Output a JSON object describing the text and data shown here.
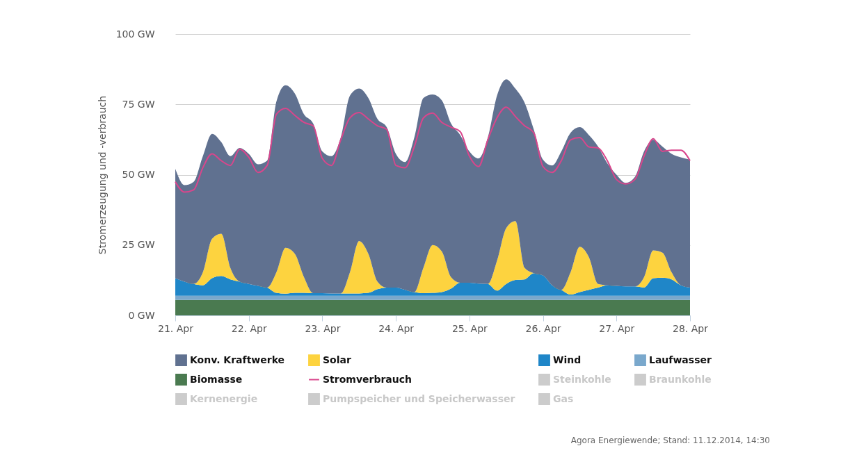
{
  "chart_data": {
    "type": "area",
    "stacked": true,
    "ylabel": "Stromerzeugung und -verbrauch",
    "annotations": [
      "Agora Energiewende; Stand: 11.12.2014, 14:30"
    ],
    "x": [
      "2014-04-21T00:00",
      "2014-04-21T03:00",
      "2014-04-21T06:00",
      "2014-04-21T09:00",
      "2014-04-21T12:00",
      "2014-04-21T15:00",
      "2014-04-21T18:00",
      "2014-04-21T21:00",
      "2014-04-22T00:00",
      "2014-04-22T03:00",
      "2014-04-22T06:00",
      "2014-04-22T09:00",
      "2014-04-22T12:00",
      "2014-04-22T15:00",
      "2014-04-22T18:00",
      "2014-04-22T21:00",
      "2014-04-23T00:00",
      "2014-04-23T03:00",
      "2014-04-23T06:00",
      "2014-04-23T09:00",
      "2014-04-23T12:00",
      "2014-04-23T15:00",
      "2014-04-23T18:00",
      "2014-04-23T21:00",
      "2014-04-24T00:00",
      "2014-04-24T03:00",
      "2014-04-24T06:00",
      "2014-04-24T09:00",
      "2014-04-24T12:00",
      "2014-04-24T15:00",
      "2014-04-24T18:00",
      "2014-04-24T21:00",
      "2014-04-25T00:00",
      "2014-04-25T03:00",
      "2014-04-25T06:00",
      "2014-04-25T09:00",
      "2014-04-25T12:00",
      "2014-04-25T15:00",
      "2014-04-25T18:00",
      "2014-04-25T21:00",
      "2014-04-26T00:00",
      "2014-04-26T03:00",
      "2014-04-26T06:00",
      "2014-04-26T09:00",
      "2014-04-26T12:00",
      "2014-04-26T15:00",
      "2014-04-26T18:00",
      "2014-04-26T21:00",
      "2014-04-27T00:00",
      "2014-04-27T03:00",
      "2014-04-27T06:00",
      "2014-04-27T09:00",
      "2014-04-27T12:00",
      "2014-04-27T15:00",
      "2014-04-27T18:00",
      "2014-04-27T21:00",
      "2014-04-28T00:00"
    ],
    "xlim": [
      "2014-04-21T00:00",
      "2014-04-28T00:00"
    ],
    "xticks": [
      {
        "value": "2014-04-21",
        "label": "21. Apr"
      },
      {
        "value": "2014-04-22",
        "label": "22. Apr"
      },
      {
        "value": "2014-04-23",
        "label": "23. Apr"
      },
      {
        "value": "2014-04-24",
        "label": "24. Apr"
      },
      {
        "value": "2014-04-25",
        "label": "25. Apr"
      },
      {
        "value": "2014-04-26",
        "label": "26. Apr"
      },
      {
        "value": "2014-04-27",
        "label": "27. Apr"
      },
      {
        "value": "2014-04-28",
        "label": "28. Apr"
      }
    ],
    "ylim": [
      0,
      100
    ],
    "yticks": [
      {
        "value": 0,
        "label": "0 GW"
      },
      {
        "value": 25,
        "label": "25 GW"
      },
      {
        "value": 50,
        "label": "50 GW"
      },
      {
        "value": 75,
        "label": "75 GW"
      },
      {
        "value": 100,
        "label": "100 GW"
      }
    ],
    "grid": "y",
    "legend": "bottom",
    "series": [
      {
        "name": "Biomasse",
        "color": "#4a7a50",
        "values": [
          5.5,
          5.5,
          5.5,
          5.5,
          5.5,
          5.5,
          5.5,
          5.5,
          5.5,
          5.5,
          5.5,
          5.5,
          5.5,
          5.5,
          5.5,
          5.5,
          5.5,
          5.5,
          5.5,
          5.5,
          5.5,
          5.5,
          5.5,
          5.5,
          5.5,
          5.5,
          5.5,
          5.5,
          5.5,
          5.5,
          5.5,
          5.5,
          5.5,
          5.5,
          5.5,
          5.5,
          5.5,
          5.5,
          5.5,
          5.5,
          5.5,
          5.5,
          5.5,
          5.5,
          5.5,
          5.5,
          5.5,
          5.5,
          5.5,
          5.5,
          5.5,
          5.5,
          5.5,
          5.5,
          5.5,
          5.5,
          5.5
        ]
      },
      {
        "name": "Laufwasser",
        "color": "#7aa8cc",
        "values": [
          1.5,
          1.5,
          1.5,
          1.5,
          1.5,
          1.5,
          1.5,
          1.5,
          1.5,
          1.5,
          1.5,
          1.5,
          1.5,
          1.5,
          1.5,
          1.5,
          1.5,
          1.5,
          1.5,
          1.5,
          1.5,
          1.5,
          1.5,
          1.5,
          1.5,
          1.5,
          1.5,
          1.5,
          1.5,
          1.5,
          1.5,
          1.5,
          1.5,
          1.5,
          1.5,
          1.5,
          1.5,
          1.5,
          1.5,
          1.5,
          1.5,
          1.5,
          1.5,
          1.5,
          1.5,
          1.5,
          1.5,
          1.5,
          1.5,
          1.5,
          1.5,
          1.5,
          1.5,
          1.5,
          1.5,
          1.5,
          1.5
        ]
      },
      {
        "name": "Wind",
        "color": "#1f86c8",
        "values": [
          6.2,
          5,
          4.2,
          3.7,
          6.2,
          7,
          5.8,
          5,
          4.2,
          3.5,
          2.9,
          1,
          0.7,
          1,
          1,
          0.9,
          0.9,
          0.8,
          0.8,
          0.8,
          0.8,
          1,
          2.3,
          2.9,
          2.9,
          2.1,
          1.3,
          0.9,
          1,
          1.3,
          2.5,
          4.6,
          4.6,
          4.3,
          4.2,
          1.8,
          4.2,
          5.6,
          5.8,
          8,
          7.2,
          3.7,
          2.1,
          0.4,
          1.3,
          2.1,
          2.9,
          3.7,
          3.5,
          3.3,
          3.3,
          2.9,
          6.2,
          6.4,
          5.8,
          3.7,
          2.9
        ]
      },
      {
        "name": "Solar",
        "color": "#fdd33f",
        "values": [
          0,
          0,
          0,
          4.6,
          14,
          15,
          4,
          0,
          0,
          0,
          0,
          7.3,
          16.3,
          13.9,
          5.6,
          0,
          0,
          0,
          0,
          7.5,
          18.6,
          13.9,
          2.7,
          0,
          0,
          0,
          0,
          9.1,
          17,
          14.4,
          4.1,
          0,
          0,
          0,
          0,
          10.6,
          19.8,
          20.9,
          4.1,
          0,
          0,
          0,
          0,
          7.9,
          16.1,
          11.6,
          1.3,
          0,
          0,
          0,
          0,
          3.7,
          9.9,
          8.9,
          2.5,
          0,
          0
        ]
      },
      {
        "name": "Konv. Kraftwerke",
        "color": "#607190",
        "values": [
          38.9,
          34.3,
          36.3,
          41.3,
          37.3,
          32.6,
          39.8,
          47.5,
          46.2,
          43.2,
          45.1,
          60.7,
          57.8,
          57,
          57.9,
          60.3,
          50.4,
          48.8,
          55.4,
          62.8,
          54.2,
          55.4,
          57.8,
          57,
          47.5,
          45.4,
          54.9,
          60.3,
          53.5,
          53.7,
          54.6,
          52.5,
          46.7,
          44.5,
          52,
          58.7,
          52.9,
          47.1,
          58.7,
          51.1,
          41.2,
          42.6,
          49.2,
          49.6,
          42.5,
          43.4,
          48.8,
          43.4,
          39.5,
          36.8,
          38.9,
          44.7,
          39.3,
          37.7,
          42.1,
          45.5,
          45.5
        ]
      },
      {
        "name": "Stromverbrauch",
        "type": "line",
        "color": "#d9468c",
        "values": [
          47.5,
          43.8,
          44.6,
          52.5,
          57.4,
          55,
          53.3,
          59.1,
          56.2,
          50.8,
          53.3,
          71.5,
          73.6,
          71.1,
          68.6,
          67.4,
          55.8,
          53.3,
          62.4,
          70.2,
          72.1,
          69.8,
          67.4,
          66.1,
          53.3,
          52.5,
          59.9,
          70.2,
          71.9,
          68.6,
          66.9,
          65.3,
          56.6,
          52.9,
          62.4,
          70.2,
          74,
          70.7,
          67.4,
          64.9,
          52.9,
          50.8,
          55,
          62.4,
          63.2,
          59.9,
          59.5,
          55,
          48.3,
          46.7,
          48.3,
          56.6,
          62.8,
          58.3,
          58.7,
          58.7,
          55
        ]
      },
      {
        "name": "Steinkohle",
        "color": "#cccccc",
        "values": [
          null,
          null,
          null,
          null,
          null,
          null,
          null,
          null,
          null,
          null,
          null,
          null,
          null,
          null,
          null,
          null,
          null,
          null,
          null,
          null,
          null,
          null,
          null,
          null,
          null,
          null,
          null,
          null,
          null,
          null,
          null,
          null,
          null,
          null,
          null,
          null,
          null,
          null,
          null,
          null,
          null,
          null,
          null,
          null,
          null,
          null,
          null,
          null,
          null,
          null,
          null,
          null,
          null,
          null,
          null,
          null,
          null
        ]
      },
      {
        "name": "Braunkohle",
        "color": "#cccccc",
        "values": [
          null,
          null,
          null,
          null,
          null,
          null,
          null,
          null,
          null,
          null,
          null,
          null,
          null,
          null,
          null,
          null,
          null,
          null,
          null,
          null,
          null,
          null,
          null,
          null,
          null,
          null,
          null,
          null,
          null,
          null,
          null,
          null,
          null,
          null,
          null,
          null,
          null,
          null,
          null,
          null,
          null,
          null,
          null,
          null,
          null,
          null,
          null,
          null,
          null,
          null,
          null,
          null,
          null,
          null,
          null,
          null,
          null
        ]
      },
      {
        "name": "Kernenergie",
        "color": "#cccccc",
        "values": [
          null,
          null,
          null,
          null,
          null,
          null,
          null,
          null,
          null,
          null,
          null,
          null,
          null,
          null,
          null,
          null,
          null,
          null,
          null,
          null,
          null,
          null,
          null,
          null,
          null,
          null,
          null,
          null,
          null,
          null,
          null,
          null,
          null,
          null,
          null,
          null,
          null,
          null,
          null,
          null,
          null,
          null,
          null,
          null,
          null,
          null,
          null,
          null,
          null,
          null,
          null,
          null,
          null,
          null,
          null,
          null,
          null
        ]
      },
      {
        "name": "Pumpspeicher und Speicherwasser",
        "color": "#cccccc",
        "values": [
          null,
          null,
          null,
          null,
          null,
          null,
          null,
          null,
          null,
          null,
          null,
          null,
          null,
          null,
          null,
          null,
          null,
          null,
          null,
          null,
          null,
          null,
          null,
          null,
          null,
          null,
          null,
          null,
          null,
          null,
          null,
          null,
          null,
          null,
          null,
          null,
          null,
          null,
          null,
          null,
          null,
          null,
          null,
          null,
          null,
          null,
          null,
          null,
          null,
          null,
          null,
          null,
          null,
          null,
          null,
          null,
          null
        ]
      },
      {
        "name": "Gas",
        "color": "#cccccc",
        "values": [
          null,
          null,
          null,
          null,
          null,
          null,
          null,
          null,
          null,
          null,
          null,
          null,
          null,
          null,
          null,
          null,
          null,
          null,
          null,
          null,
          null,
          null,
          null,
          null,
          null,
          null,
          null,
          null,
          null,
          null,
          null,
          null,
          null,
          null,
          null,
          null,
          null,
          null,
          null,
          null,
          null,
          null,
          null,
          null,
          null,
          null,
          null,
          null,
          null,
          null,
          null,
          null,
          null,
          null,
          null,
          null,
          null
        ]
      }
    ]
  }
}
